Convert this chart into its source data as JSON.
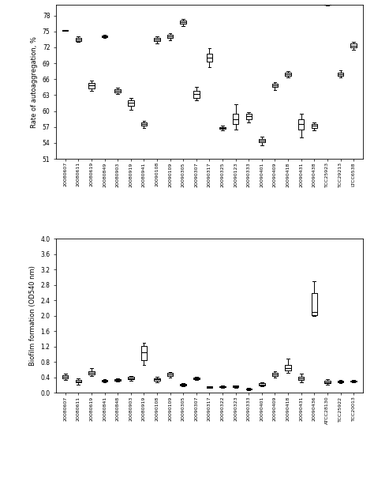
{
  "chart1": {
    "ylabel": "Rate of autoaggregation, %",
    "ylim": [
      51,
      80
    ],
    "yticks": [
      51,
      54,
      57,
      60,
      63,
      66,
      69,
      72,
      75,
      78
    ],
    "strains": [
      "20080607",
      "20080611",
      "20080619",
      "20080849",
      "20080903",
      "20080919",
      "20080941",
      "20090108",
      "20090109",
      "20090305",
      "20090307",
      "20090317",
      "20090325",
      "20090123",
      "20090333",
      "20090401",
      "20090409",
      "20090418",
      "20090431",
      "20090438",
      "TCC25923",
      "TCC29213",
      "LTCC6538"
    ],
    "boxes": [
      {
        "med": 75.2,
        "q1": 75.15,
        "q3": 75.25,
        "whislo": 75.1,
        "whishi": 75.3
      },
      {
        "med": 73.5,
        "q1": 73.2,
        "q3": 73.8,
        "whislo": 73.0,
        "whishi": 74.0
      },
      {
        "med": 64.8,
        "q1": 64.2,
        "q3": 65.3,
        "whislo": 63.8,
        "whishi": 65.8
      },
      {
        "med": 74.0,
        "q1": 73.85,
        "q3": 74.15,
        "whislo": 73.7,
        "whishi": 74.3
      },
      {
        "med": 63.8,
        "q1": 63.5,
        "q3": 64.1,
        "whislo": 63.2,
        "whishi": 64.4
      },
      {
        "med": 61.5,
        "q1": 61.0,
        "q3": 62.0,
        "whislo": 60.3,
        "whishi": 62.5
      },
      {
        "med": 57.5,
        "q1": 57.2,
        "q3": 57.8,
        "whislo": 56.8,
        "whishi": 58.1
      },
      {
        "med": 73.5,
        "q1": 73.2,
        "q3": 73.8,
        "whislo": 72.8,
        "whishi": 74.0
      },
      {
        "med": 74.0,
        "q1": 73.7,
        "q3": 74.3,
        "whislo": 73.4,
        "whishi": 74.7
      },
      {
        "med": 76.7,
        "q1": 76.4,
        "q3": 77.0,
        "whislo": 76.0,
        "whishi": 77.3
      },
      {
        "med": 63.2,
        "q1": 62.5,
        "q3": 63.8,
        "whislo": 62.0,
        "whishi": 64.5
      },
      {
        "med": 70.0,
        "q1": 69.3,
        "q3": 70.8,
        "whislo": 68.3,
        "whishi": 71.8
      },
      {
        "med": 56.8,
        "q1": 56.6,
        "q3": 57.0,
        "whislo": 56.4,
        "whishi": 57.2
      },
      {
        "med": 58.5,
        "q1": 57.5,
        "q3": 59.5,
        "whislo": 56.5,
        "whishi": 61.3
      },
      {
        "med": 59.0,
        "q1": 58.5,
        "q3": 59.5,
        "whislo": 57.8,
        "whishi": 59.8
      },
      {
        "med": 54.5,
        "q1": 54.2,
        "q3": 54.8,
        "whislo": 53.5,
        "whishi": 55.2
      },
      {
        "med": 64.8,
        "q1": 64.5,
        "q3": 65.2,
        "whislo": 64.0,
        "whishi": 65.5
      },
      {
        "med": 67.0,
        "q1": 66.7,
        "q3": 67.3,
        "whislo": 66.3,
        "whishi": 67.5
      },
      {
        "med": 57.5,
        "q1": 56.5,
        "q3": 58.5,
        "whislo": 55.0,
        "whishi": 59.5
      },
      {
        "med": 57.2,
        "q1": 56.8,
        "q3": 57.5,
        "whislo": 56.3,
        "whishi": 57.8
      },
      {
        "med": 80.2,
        "q1": 80.05,
        "q3": 80.35,
        "whislo": 79.9,
        "whishi": 80.5
      },
      {
        "med": 67.0,
        "q1": 66.7,
        "q3": 67.3,
        "whislo": 66.3,
        "whishi": 67.7
      },
      {
        "med": 72.3,
        "q1": 72.0,
        "q3": 72.7,
        "whislo": 71.6,
        "whishi": 73.0
      }
    ]
  },
  "chart2": {
    "ylabel": "Biofilm formation (OD540 nm)",
    "ylim": [
      0,
      4.0
    ],
    "yticks": [
      0.0,
      0.4,
      0.8,
      1.2,
      1.6,
      2.0,
      2.4,
      2.8,
      3.2,
      3.6,
      4.0
    ],
    "strains": [
      "20080607",
      "20080611",
      "20080619",
      "20080841",
      "20080848",
      "20080903",
      "20080919",
      "20090108",
      "20090109",
      "20090305",
      "20090307",
      "20090317",
      "20090322",
      "20090323",
      "20090333",
      "20090401",
      "20090409",
      "20090418",
      "20090431",
      "20090436",
      "ATCC28130",
      "TCC25922",
      "TCC20013"
    ],
    "boxes": [
      {
        "med": 0.42,
        "q1": 0.38,
        "q3": 0.46,
        "whislo": 0.34,
        "whishi": 0.5
      },
      {
        "med": 0.3,
        "q1": 0.27,
        "q3": 0.33,
        "whislo": 0.22,
        "whishi": 0.37
      },
      {
        "med": 0.52,
        "q1": 0.47,
        "q3": 0.57,
        "whislo": 0.43,
        "whishi": 0.65
      },
      {
        "med": 0.32,
        "q1": 0.3,
        "q3": 0.34,
        "whislo": 0.28,
        "whishi": 0.36
      },
      {
        "med": 0.34,
        "q1": 0.32,
        "q3": 0.36,
        "whislo": 0.3,
        "whishi": 0.38
      },
      {
        "med": 0.38,
        "q1": 0.35,
        "q3": 0.41,
        "whislo": 0.32,
        "whishi": 0.44
      },
      {
        "med": 1.05,
        "q1": 0.85,
        "q3": 1.22,
        "whislo": 0.73,
        "whishi": 1.3
      },
      {
        "med": 0.35,
        "q1": 0.32,
        "q3": 0.38,
        "whislo": 0.28,
        "whishi": 0.42
      },
      {
        "med": 0.47,
        "q1": 0.44,
        "q3": 0.51,
        "whislo": 0.4,
        "whishi": 0.55
      },
      {
        "med": 0.22,
        "q1": 0.2,
        "q3": 0.24,
        "whislo": 0.18,
        "whishi": 0.26
      },
      {
        "med": 0.38,
        "q1": 0.36,
        "q3": 0.4,
        "whislo": 0.33,
        "whishi": 0.42
      },
      {
        "med": 0.15,
        "q1": 0.135,
        "q3": 0.165,
        "whislo": 0.12,
        "whishi": 0.18
      },
      {
        "med": 0.16,
        "q1": 0.145,
        "q3": 0.175,
        "whislo": 0.13,
        "whishi": 0.19
      },
      {
        "med": 0.17,
        "q1": 0.155,
        "q3": 0.185,
        "whislo": 0.14,
        "whishi": 0.2
      },
      {
        "med": 0.1,
        "q1": 0.085,
        "q3": 0.115,
        "whislo": 0.07,
        "whishi": 0.13
      },
      {
        "med": 0.22,
        "q1": 0.2,
        "q3": 0.25,
        "whislo": 0.18,
        "whishi": 0.28
      },
      {
        "med": 0.48,
        "q1": 0.44,
        "q3": 0.53,
        "whislo": 0.4,
        "whishi": 0.57
      },
      {
        "med": 0.65,
        "q1": 0.58,
        "q3": 0.72,
        "whislo": 0.52,
        "whishi": 0.88
      },
      {
        "med": 0.37,
        "q1": 0.33,
        "q3": 0.41,
        "whislo": 0.28,
        "whishi": 0.5
      },
      {
        "med": 2.1,
        "q1": 2.02,
        "q3": 2.6,
        "whislo": 2.0,
        "whishi": 2.9
      },
      {
        "med": 0.28,
        "q1": 0.25,
        "q3": 0.32,
        "whislo": 0.22,
        "whishi": 0.36
      },
      {
        "med": 0.3,
        "q1": 0.28,
        "q3": 0.32,
        "whislo": 0.26,
        "whishi": 0.34
      },
      {
        "med": 0.3,
        "q1": 0.285,
        "q3": 0.315,
        "whislo": 0.27,
        "whishi": 0.33
      }
    ]
  },
  "fig_width": 4.74,
  "fig_height": 6.14,
  "dpi": 100
}
